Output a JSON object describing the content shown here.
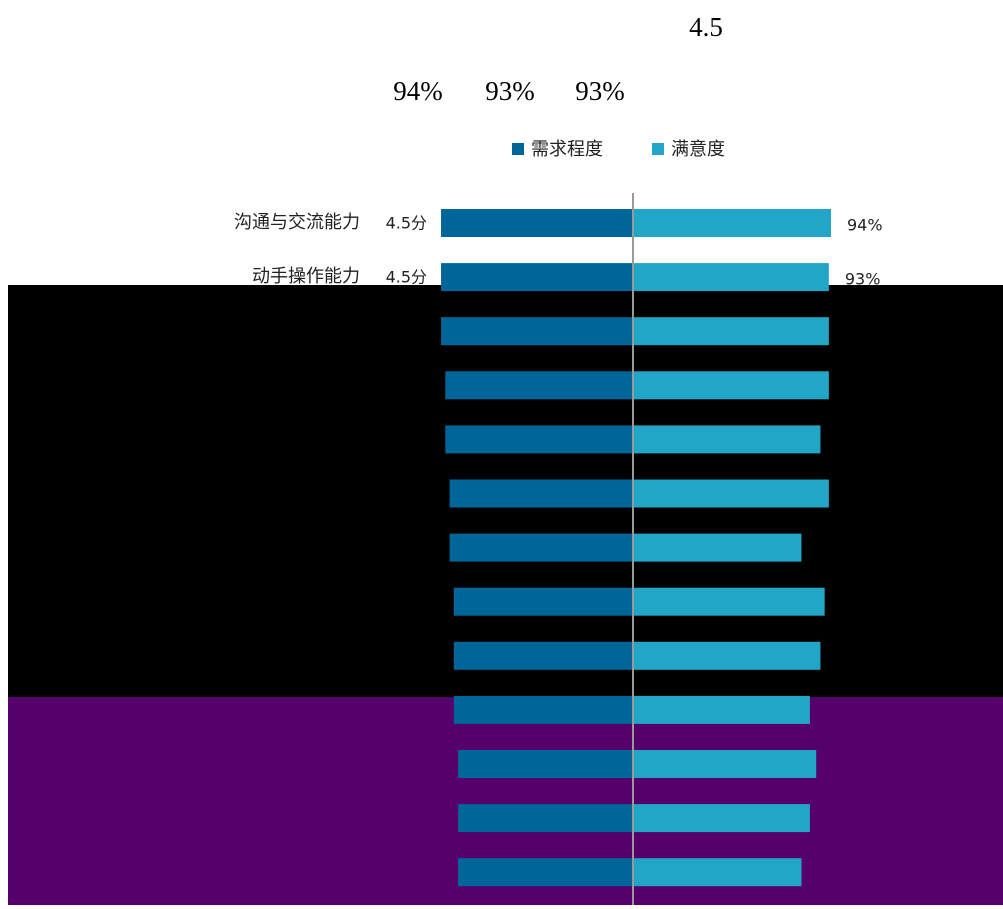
{
  "chart_data": {
    "type": "butterfly-bar",
    "annotations": [
      "4.5",
      "94%",
      "93%",
      "93%"
    ],
    "categories": [
      "沟通与交流能力",
      "动手操作能力",
      null,
      null,
      null,
      null,
      null,
      null,
      null,
      null,
      null,
      null,
      null
    ],
    "series": [
      {
        "name": "需求程度",
        "color": "#006699",
        "side": "left",
        "values": [
          4.5,
          4.5,
          4.5,
          4.4,
          4.4,
          4.3,
          4.3,
          4.2,
          4.2,
          4.2,
          4.1,
          4.1,
          4.1
        ],
        "value_labels": [
          "4.5分",
          "4.5分",
          null,
          null,
          null,
          null,
          null,
          null,
          null,
          null,
          null,
          null,
          null
        ]
      },
      {
        "name": "满意度",
        "color": "#22a6c8",
        "side": "right",
        "values": [
          94,
          93,
          93,
          93,
          89,
          93,
          80,
          91,
          89,
          84,
          87,
          84,
          80
        ],
        "value_labels": [
          "94%",
          "93%",
          null,
          null,
          null,
          null,
          null,
          null,
          null,
          null,
          null,
          null,
          null
        ]
      }
    ],
    "xlim": [
      0,
      5
    ],
    "x2lim": [
      0,
      100
    ]
  }
}
